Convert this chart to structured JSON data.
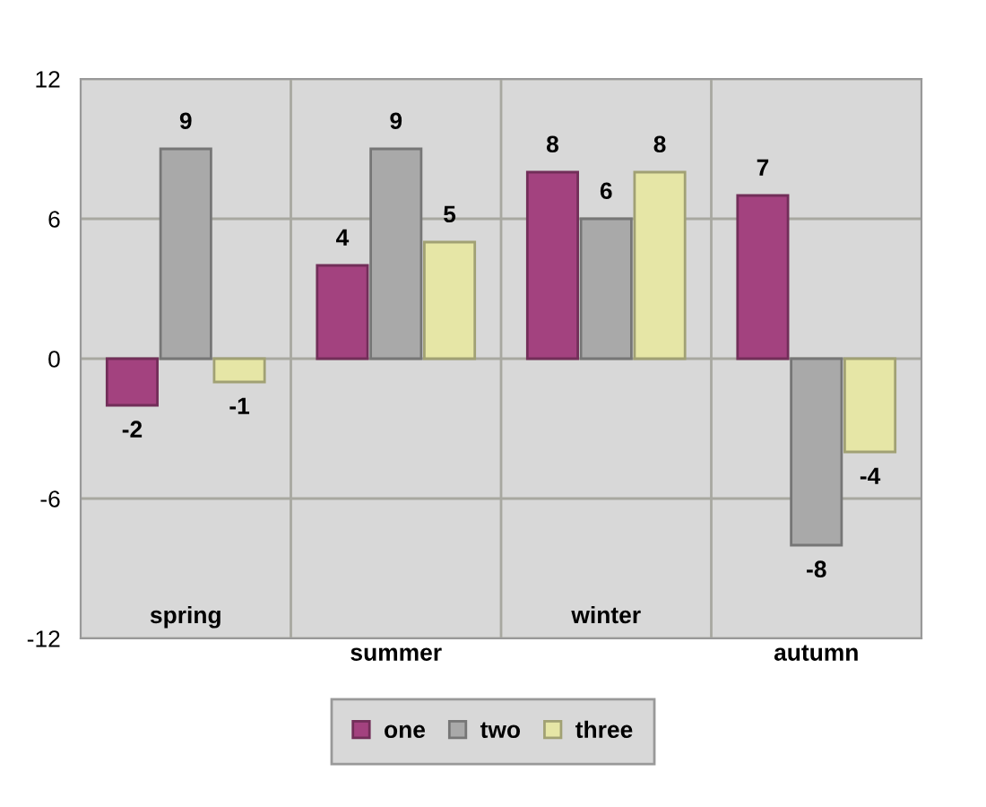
{
  "chart_data": {
    "type": "bar",
    "categories": [
      "spring",
      "summer",
      "winter",
      "autumn"
    ],
    "series": [
      {
        "name": "one",
        "color": "#a3427f",
        "values": [
          -2,
          4,
          8,
          7
        ]
      },
      {
        "name": "two",
        "color": "#a9a9a9",
        "values": [
          9,
          9,
          6,
          -8
        ]
      },
      {
        "name": "three",
        "color": "#e6e6a6",
        "values": [
          -1,
          5,
          8,
          -4
        ]
      }
    ],
    "ylim": [
      -12,
      12
    ],
    "yticks": [
      -12,
      -6,
      0,
      6,
      12
    ],
    "grid": true,
    "legend": "bottom",
    "data_labels": true
  }
}
